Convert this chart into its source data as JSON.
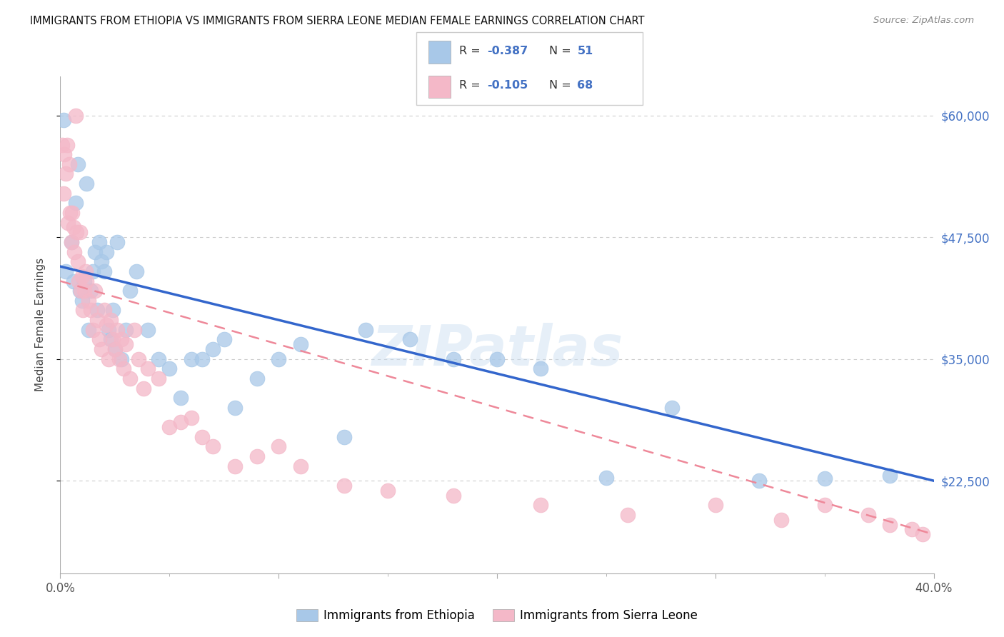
{
  "title": "IMMIGRANTS FROM ETHIOPIA VS IMMIGRANTS FROM SIERRA LEONE MEDIAN FEMALE EARNINGS CORRELATION CHART",
  "source": "Source: ZipAtlas.com",
  "ylabel": "Median Female Earnings",
  "y_ticks": [
    22500,
    35000,
    47500,
    60000
  ],
  "y_tick_labels": [
    "$22,500",
    "$35,000",
    "$47,500",
    "$60,000"
  ],
  "x_min": 0.0,
  "x_max": 40.0,
  "y_min": 13000,
  "y_max": 64000,
  "color_blue": "#a8c8e8",
  "color_pink": "#f4b8c8",
  "color_blue_line": "#3366cc",
  "color_pink_line": "#ee8899",
  "watermark": "ZIPatlas",
  "ethiopia_x": [
    0.15,
    0.25,
    0.5,
    0.6,
    0.7,
    0.8,
    0.9,
    1.0,
    1.1,
    1.2,
    1.3,
    1.4,
    1.5,
    1.6,
    1.7,
    1.8,
    1.9,
    2.0,
    2.1,
    2.2,
    2.3,
    2.4,
    2.5,
    2.6,
    2.8,
    3.0,
    3.2,
    3.5,
    4.0,
    4.5,
    5.0,
    5.5,
    6.0,
    6.5,
    7.0,
    7.5,
    8.0,
    9.0,
    10.0,
    11.0,
    13.0,
    14.0,
    16.0,
    18.0,
    20.0,
    22.0,
    25.0,
    28.0,
    32.0,
    35.0,
    38.0
  ],
  "ethiopia_y": [
    59500,
    44000,
    47000,
    43000,
    51000,
    55000,
    42000,
    41000,
    43000,
    53000,
    38000,
    42000,
    44000,
    46000,
    40000,
    47000,
    45000,
    44000,
    46000,
    38000,
    37000,
    40000,
    36000,
    47000,
    35000,
    38000,
    42000,
    44000,
    38000,
    35000,
    34000,
    31000,
    35000,
    35000,
    36000,
    37000,
    30000,
    33000,
    35000,
    36500,
    27000,
    38000,
    37000,
    35000,
    35000,
    34000,
    22800,
    30000,
    22500,
    22700,
    23000
  ],
  "sierraleone_x": [
    0.1,
    0.15,
    0.2,
    0.25,
    0.3,
    0.35,
    0.4,
    0.45,
    0.5,
    0.55,
    0.6,
    0.65,
    0.7,
    0.75,
    0.8,
    0.85,
    0.9,
    0.95,
    1.0,
    1.05,
    1.1,
    1.15,
    1.2,
    1.3,
    1.4,
    1.5,
    1.6,
    1.7,
    1.8,
    1.9,
    2.0,
    2.1,
    2.2,
    2.3,
    2.4,
    2.5,
    2.6,
    2.7,
    2.8,
    2.9,
    3.0,
    3.2,
    3.4,
    3.6,
    3.8,
    4.0,
    4.5,
    5.0,
    5.5,
    6.0,
    6.5,
    7.0,
    8.0,
    9.0,
    10.0,
    11.0,
    13.0,
    15.0,
    18.0,
    22.0,
    26.0,
    30.0,
    33.0,
    35.0,
    37.0,
    38.0,
    39.0,
    39.5
  ],
  "sierraleone_y": [
    57000,
    52000,
    56000,
    54000,
    57000,
    49000,
    55000,
    50000,
    47000,
    50000,
    48500,
    46000,
    60000,
    48000,
    45000,
    43000,
    48000,
    42000,
    43500,
    40000,
    42000,
    44000,
    43000,
    41000,
    40000,
    38000,
    42000,
    39000,
    37000,
    36000,
    40000,
    38500,
    35000,
    39000,
    37000,
    36000,
    38000,
    35000,
    37000,
    34000,
    36500,
    33000,
    38000,
    35000,
    32000,
    34000,
    33000,
    28000,
    28500,
    29000,
    27000,
    26000,
    24000,
    25000,
    26000,
    24000,
    22000,
    21500,
    21000,
    20000,
    19000,
    20000,
    18500,
    20000,
    19000,
    18000,
    17500,
    17000
  ]
}
